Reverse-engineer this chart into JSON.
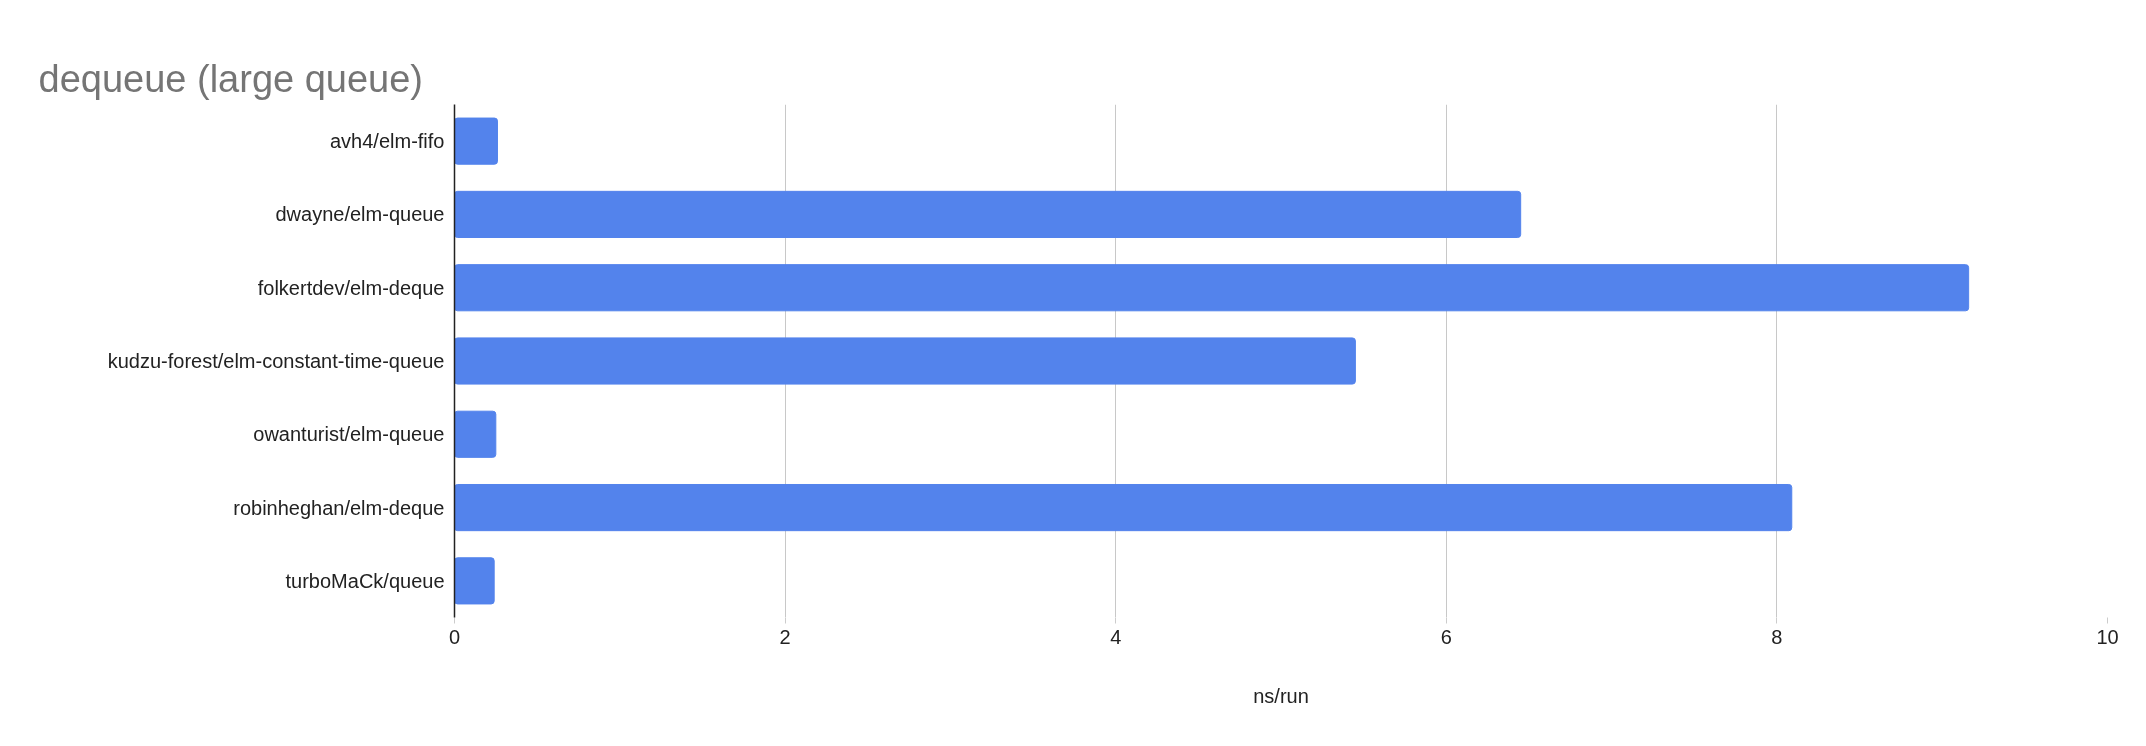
{
  "chart_data": {
    "type": "bar",
    "orientation": "horizontal",
    "title": "dequeue (large queue)",
    "xlabel": "ns/run",
    "categories": [
      "avh4/elm-fifo",
      "dwayne/elm-queue",
      "folkertdev/elm-deque",
      "kudzu-forest/elm-constant-time-queue",
      "owanturist/elm-queue",
      "robinheghan/elm-deque",
      "turboMaCk/queue"
    ],
    "values": [
      0.26,
      6.45,
      9.16,
      5.45,
      0.25,
      8.09,
      0.24
    ],
    "color": "#5383ec",
    "xlim": [
      0,
      10
    ],
    "xticks": [
      0,
      2,
      4,
      6,
      8,
      10
    ],
    "grid": "x"
  }
}
